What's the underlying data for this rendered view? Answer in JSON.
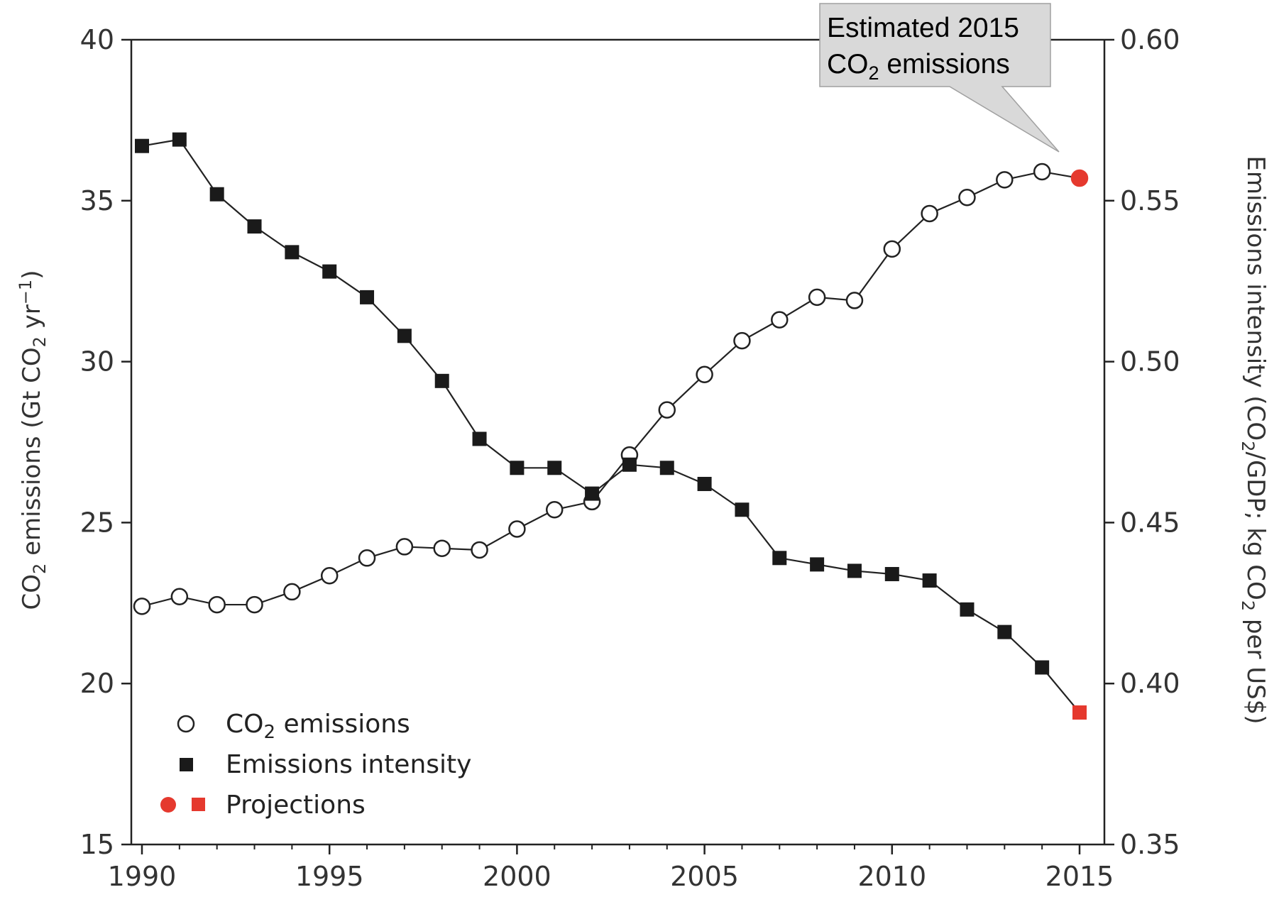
{
  "chart_data": {
    "type": "line",
    "x": [
      1990,
      1991,
      1992,
      1993,
      1994,
      1995,
      1996,
      1997,
      1998,
      1999,
      2000,
      2001,
      2002,
      2003,
      2004,
      2005,
      2006,
      2007,
      2008,
      2009,
      2010,
      2011,
      2012,
      2013,
      2014,
      2015
    ],
    "series": [
      {
        "name_prefix": "CO",
        "name_sub": "2",
        "name_suffix": " emissions",
        "axis": "left",
        "marker": "open-circle",
        "values": [
          22.4,
          22.7,
          22.45,
          22.45,
          22.85,
          23.35,
          23.9,
          24.25,
          24.2,
          24.15,
          24.8,
          25.4,
          25.65,
          27.1,
          28.5,
          29.6,
          30.65,
          31.3,
          32.0,
          31.9,
          33.5,
          34.6,
          35.1,
          35.65,
          35.9,
          35.7
        ],
        "projected_index": 25
      },
      {
        "name": "Emissions intensity",
        "axis": "right",
        "marker": "filled-square",
        "values": [
          0.567,
          0.569,
          0.552,
          0.542,
          0.534,
          0.528,
          0.52,
          0.508,
          0.494,
          0.476,
          0.467,
          0.467,
          0.459,
          0.468,
          0.467,
          0.462,
          0.454,
          0.439,
          0.437,
          0.435,
          0.434,
          0.432,
          0.423,
          0.416,
          0.405,
          0.391
        ],
        "projected_index": 25
      }
    ],
    "projections_label": "Projections",
    "x_ticks": [
      1990,
      1995,
      2000,
      2005,
      2010,
      2015
    ],
    "left_axis": {
      "ylim": [
        15,
        40
      ],
      "ticks": [
        "15",
        "20",
        "25",
        "30",
        "35",
        "40"
      ],
      "label": {
        "p1": "CO",
        "s1": "2",
        "p2": " emissions (Gt CO",
        "s2": "2",
        "p3": " yr",
        "sup": "−1",
        "p4": ")"
      }
    },
    "right_axis": {
      "ylim": [
        0.35,
        0.6
      ],
      "ticks": [
        "0.35",
        "0.40",
        "0.45",
        "0.50",
        "0.55",
        "0.60"
      ],
      "label": {
        "p1": "Emissions intensity (CO",
        "s1": "2",
        "p2": "/GDP; kg CO",
        "s2": "2",
        "p3": " per US$)"
      }
    },
    "annotation": {
      "line1": "Estimated 2015",
      "line2_prefix": "CO",
      "line2_sub": "2",
      "line2_suffix": " emissions"
    },
    "grid": false,
    "legend_position": "bottom-left",
    "colors": {
      "line": "#222222",
      "marker_fill": "#1a1a1a",
      "projection": "#e5392e",
      "callout_fill": "#d9d9d9",
      "callout_border": "#a0a0a0"
    }
  }
}
